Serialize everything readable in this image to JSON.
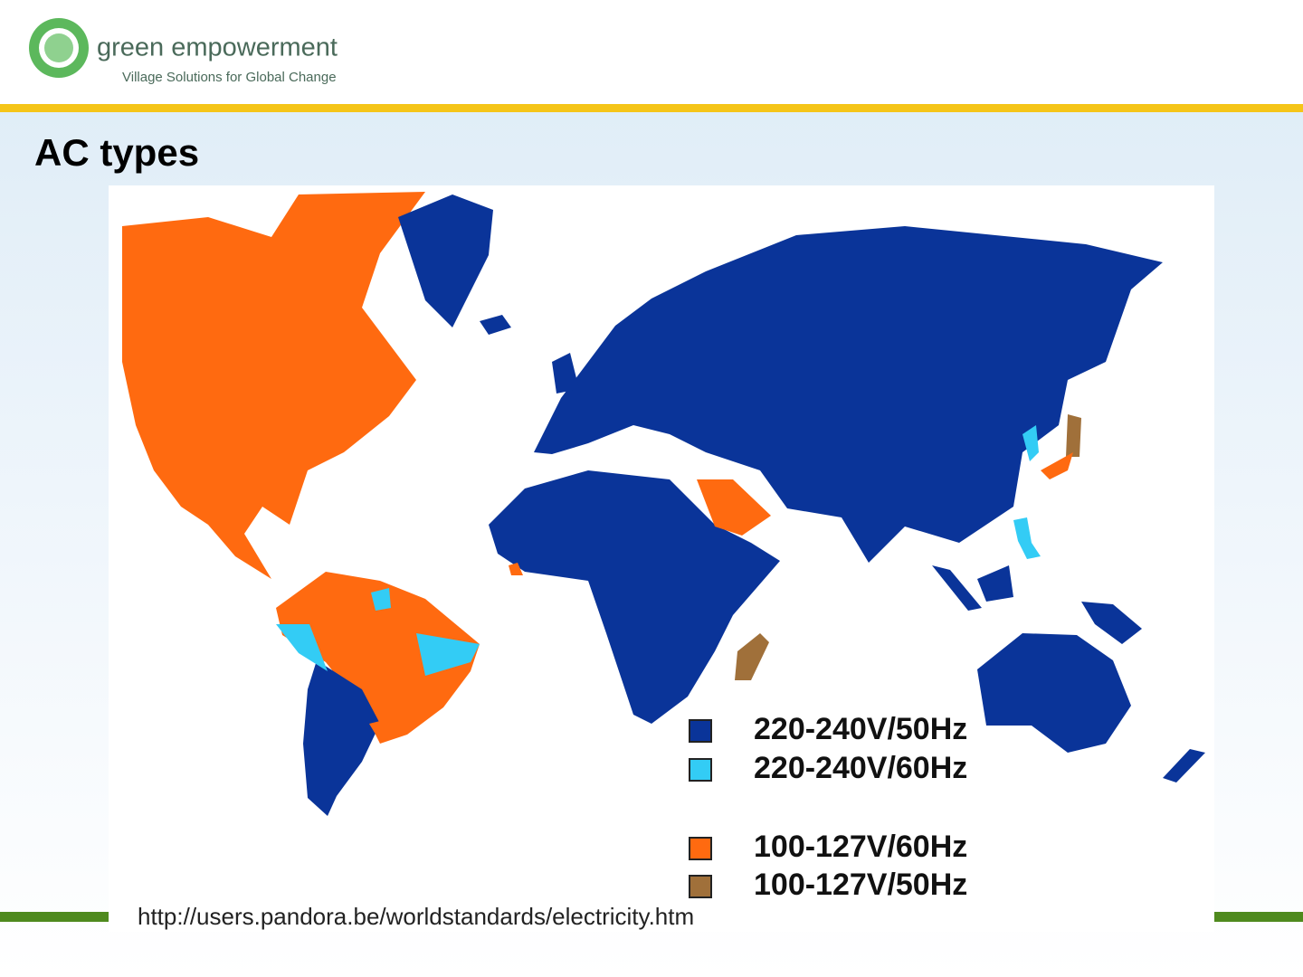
{
  "header": {
    "brand": "green empowerment",
    "tagline": "Village Solutions for Global Change"
  },
  "title": "AC types",
  "legend": [
    {
      "label": "220-240V/50Hz",
      "color": "#0a3499"
    },
    {
      "label": "220-240V/60Hz",
      "color": "#33ccf5"
    },
    {
      "label": "100-127V/60Hz",
      "color": "#ff6a10"
    },
    {
      "label": "100-127V/50Hz",
      "color": "#a0703a"
    }
  ],
  "source": "http://users.pandora.be/worldstandards/electricity.htm"
}
